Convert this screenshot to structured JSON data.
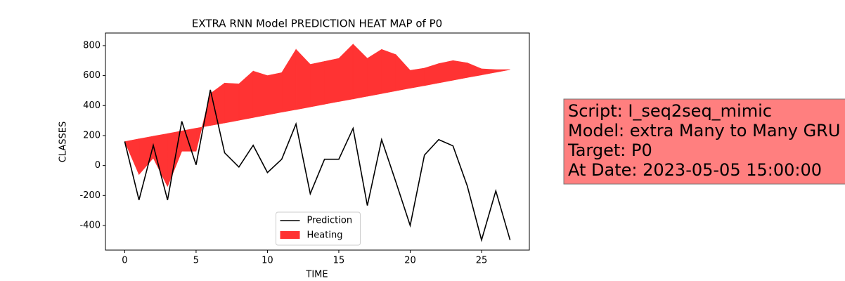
{
  "chart_data": {
    "type": "line",
    "title": "EXTRA RNN Model PREDICTION HEAT MAP of P0",
    "x_label": "TIME",
    "y_label": "CLASSES",
    "x": [
      0,
      1,
      2,
      3,
      4,
      5,
      6,
      7,
      8,
      9,
      10,
      11,
      12,
      13,
      14,
      15,
      16,
      17,
      18,
      19,
      20,
      21,
      22,
      23,
      24,
      25,
      26,
      27
    ],
    "series": [
      {
        "name": "Prediction",
        "color": "#000000",
        "kind": "line",
        "values": [
          160,
          -230,
          135,
          -230,
          295,
          5,
          505,
          85,
          -10,
          135,
          -47,
          42,
          277,
          -188,
          42,
          42,
          248,
          -267,
          173,
          -110,
          -400,
          70,
          173,
          131,
          -136,
          -497,
          -169,
          -497
        ]
      },
      {
        "name": "Heating",
        "color": "#ff3333",
        "kind": "fill_between",
        "base": [
          160,
          178,
          196,
          213,
          231,
          249,
          267,
          284,
          302,
          320,
          338,
          356,
          373,
          391,
          409,
          427,
          444,
          462,
          480,
          498,
          516,
          533,
          551,
          569,
          587,
          604,
          622,
          640
        ],
        "values": [
          160,
          -60,
          50,
          -140,
          95,
          95,
          480,
          550,
          545,
          630,
          600,
          620,
          775,
          675,
          695,
          715,
          810,
          715,
          775,
          740,
          635,
          650,
          680,
          700,
          685,
          645,
          640,
          640
        ]
      }
    ],
    "xlim": [
      -1.35,
      28.35
    ],
    "xticks": [
      0,
      5,
      10,
      15,
      20,
      25
    ],
    "ylim": [
      -564,
      884
    ],
    "yticks": [
      -400,
      -200,
      0,
      200,
      400,
      600,
      800
    ],
    "legend": "lower center",
    "annotation": {
      "lines": [
        "Script: I_seq2seq_mimic",
        "Model: extra Many to Many GRU",
        "Target: P0",
        "At Date: 2023-05-05 15:00:00"
      ],
      "color": "#ff7f7f"
    }
  }
}
